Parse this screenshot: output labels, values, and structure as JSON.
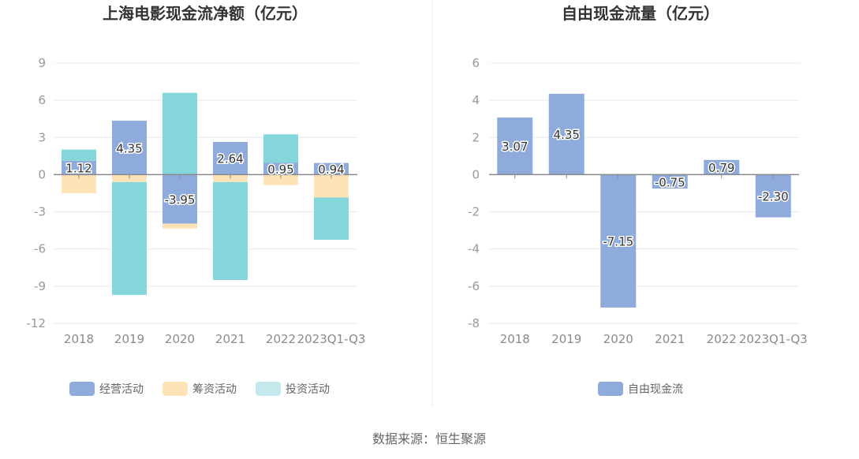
{
  "source": "数据来源：恒生聚源",
  "colors": {
    "operating": "#8eabdc",
    "financing": "#fde3b6",
    "investing": "#85d6da",
    "investing_legend": "#c3e9ec",
    "free": "#8eabdc",
    "grid": "#e6e9f2",
    "axis": "#8a8a8a"
  },
  "chart_data": [
    {
      "type": "bar",
      "stacked": true,
      "title": "上海电影现金流净额（亿元）",
      "categories": [
        "2018",
        "2019",
        "2020",
        "2021",
        "2022",
        "2023Q1-Q3"
      ],
      "ylim": [
        -12,
        9
      ],
      "yticks": [
        9,
        6,
        3,
        0,
        -3,
        -6,
        -9,
        -12
      ],
      "series": [
        {
          "key": "operating",
          "name": "经营活动",
          "values": [
            1.12,
            4.35,
            -3.95,
            2.64,
            0.95,
            0.94
          ]
        },
        {
          "key": "financing",
          "name": "筹资活动",
          "values": [
            -1.5,
            -0.6,
            -0.4,
            -0.6,
            -0.85,
            -1.85
          ]
        },
        {
          "key": "investing",
          "name": "投资活动",
          "values": [
            0.9,
            -9.1,
            6.6,
            -7.9,
            2.3,
            -3.4
          ]
        }
      ],
      "data_labels": [
        "1.12",
        "4.35",
        "-3.95",
        "2.64",
        "0.95",
        "0.94"
      ],
      "legend": "bottom"
    },
    {
      "type": "bar",
      "title": "自由现金流量（亿元）",
      "categories": [
        "2018",
        "2019",
        "2020",
        "2021",
        "2022",
        "2023Q1-Q3"
      ],
      "ylim": [
        -8,
        6
      ],
      "yticks": [
        6,
        4,
        2,
        0,
        -2,
        -4,
        -6,
        -8
      ],
      "series": [
        {
          "key": "free",
          "name": "自由现金流",
          "values": [
            3.07,
            4.35,
            -7.15,
            -0.75,
            0.79,
            -2.3
          ]
        }
      ],
      "data_labels": [
        "3.07",
        "4.35",
        "-7.15",
        "-0.75",
        "0.79",
        "-2.30"
      ],
      "legend": "bottom"
    }
  ]
}
